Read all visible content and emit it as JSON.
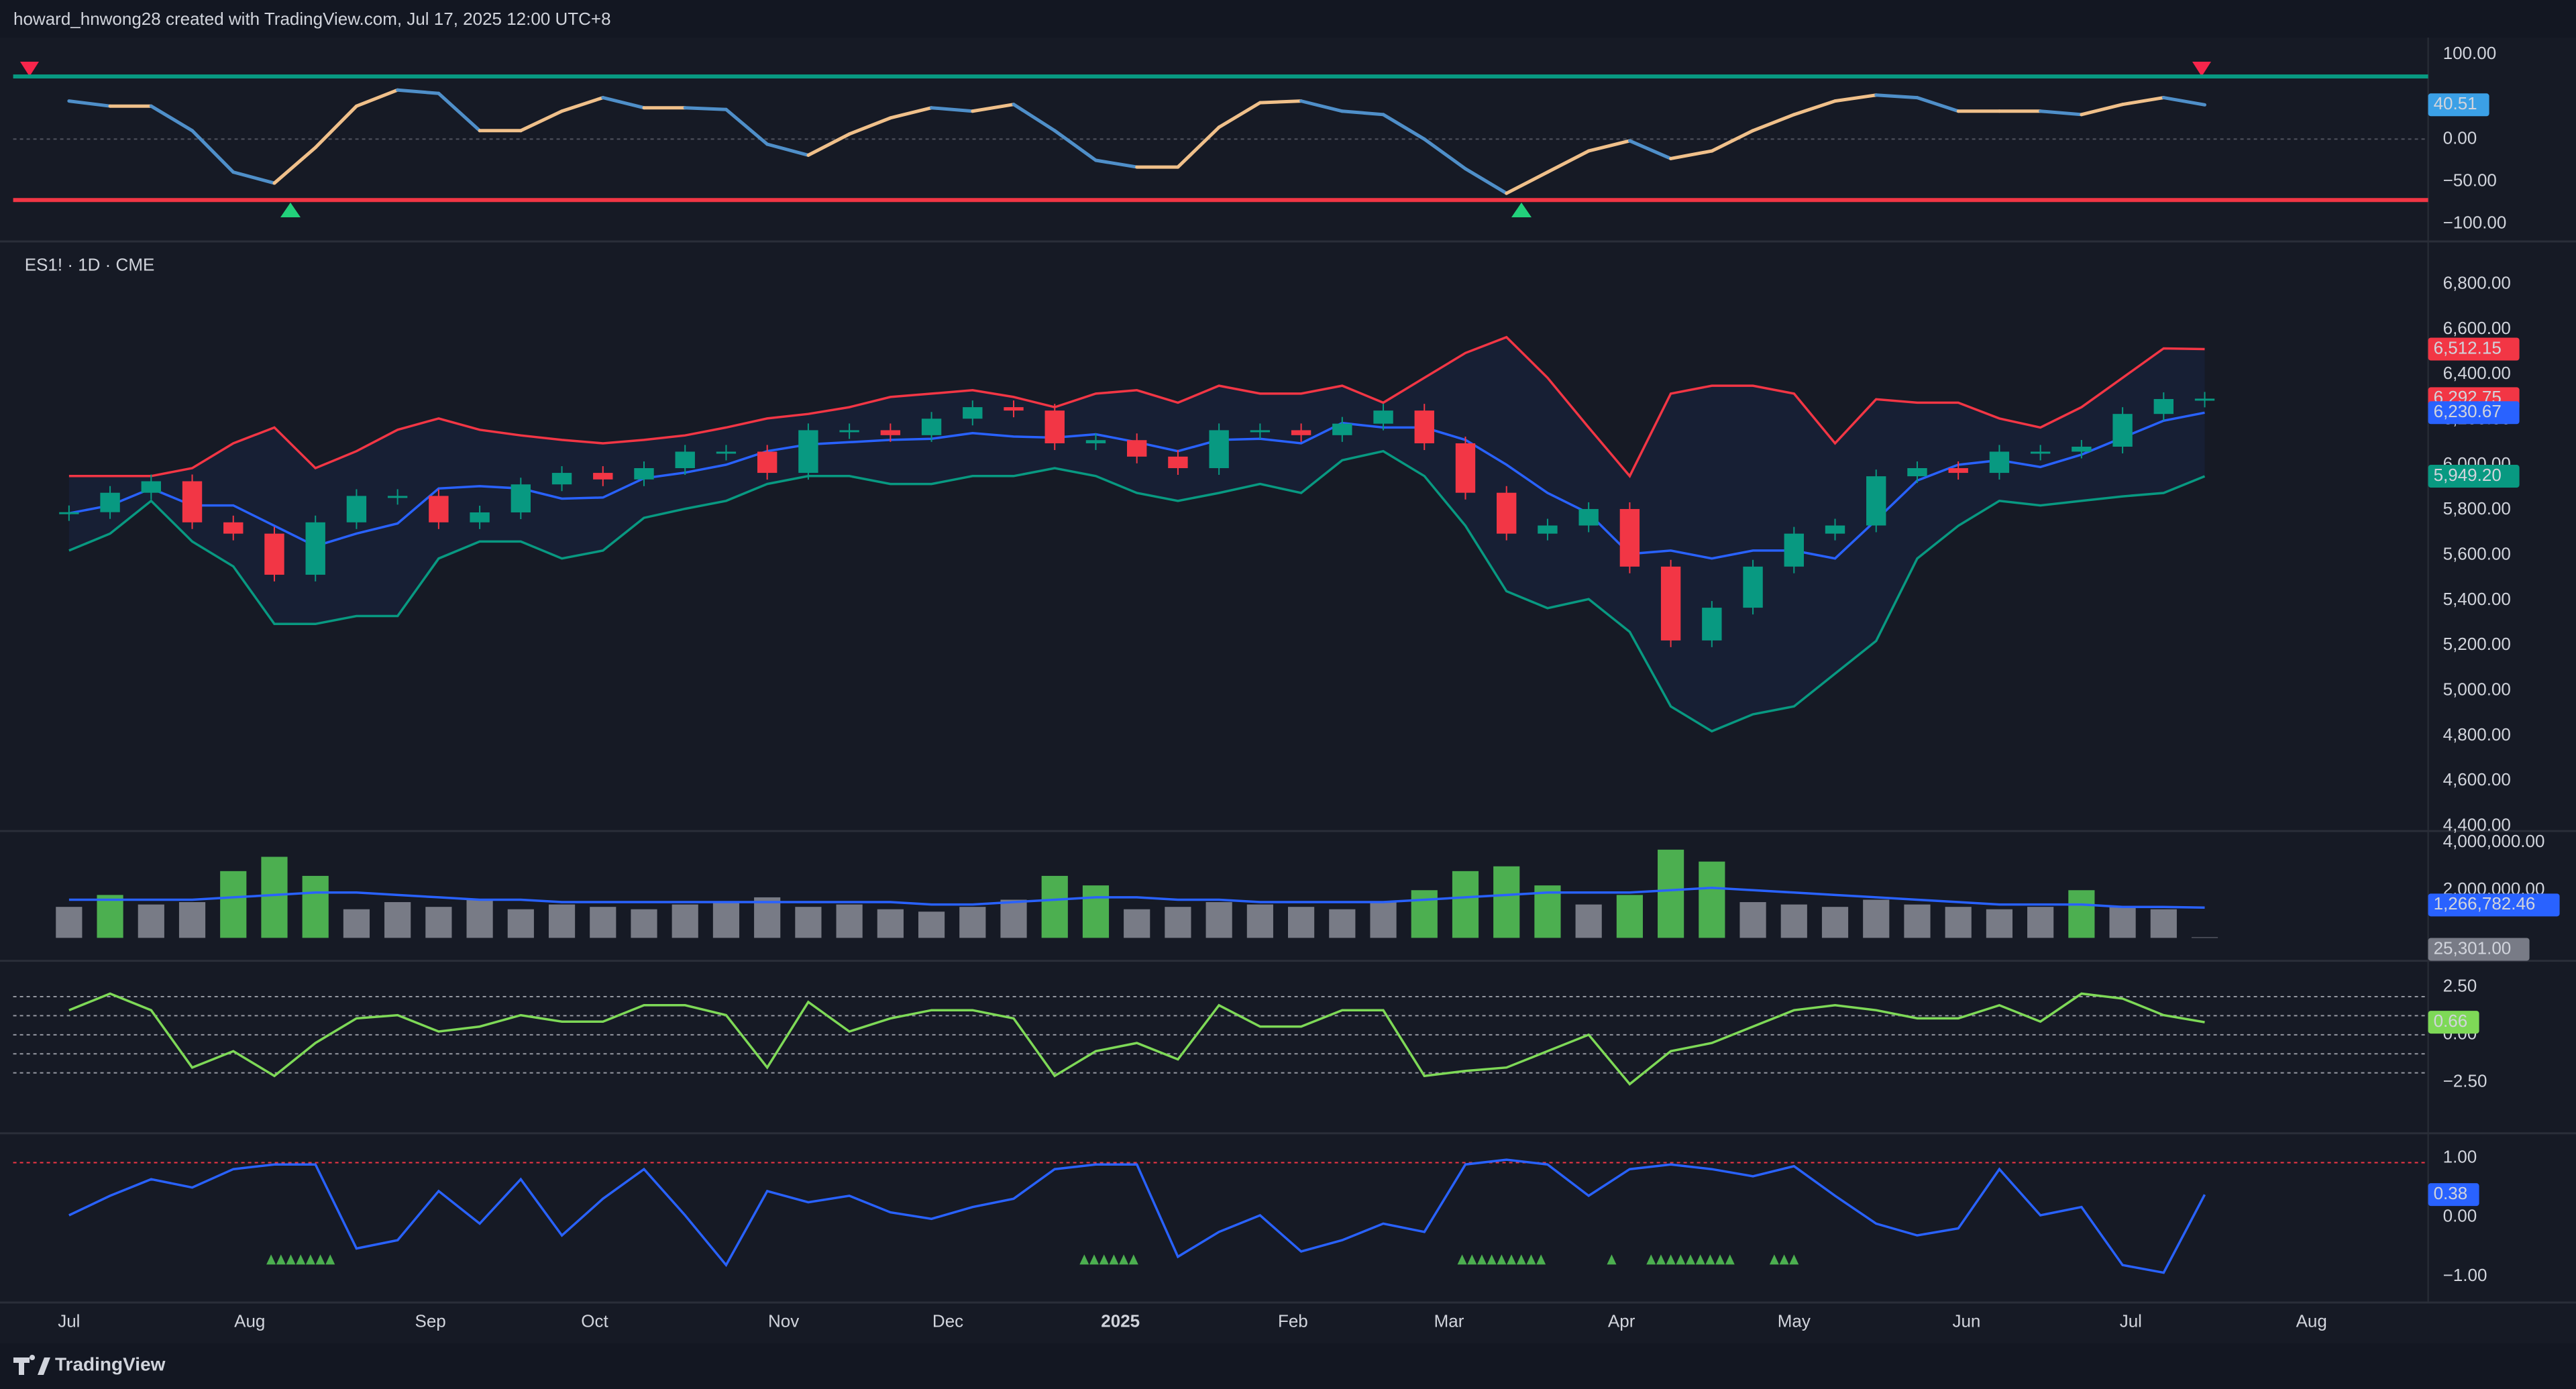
{
  "header": "howard_hnwong28 created with TradingView.com, Jul 17, 2025 12:00 UTC+8",
  "footer": "TradingView",
  "chart_data": {
    "type": "financial",
    "xlim": [
      -6.8,
      287.2
    ],
    "xticks": [
      {
        "value": 0,
        "label": "Jul"
      },
      {
        "value": 22,
        "label": "Aug"
      },
      {
        "value": 44,
        "label": "Sep"
      },
      {
        "value": 64,
        "label": "Oct"
      },
      {
        "value": 87,
        "label": "Nov"
      },
      {
        "value": 107,
        "label": "Dec"
      },
      {
        "value": 128,
        "label": "2025",
        "bold": true
      },
      {
        "value": 149,
        "label": "Feb"
      },
      {
        "value": 168,
        "label": "Mar"
      },
      {
        "value": 189,
        "label": "Apr"
      },
      {
        "value": 210,
        "label": "May"
      },
      {
        "value": 231,
        "label": "Jun"
      },
      {
        "value": 251,
        "label": "Jul"
      },
      {
        "value": 273,
        "label": "Aug"
      }
    ],
    "x": [
      0,
      5,
      10,
      15,
      20,
      25,
      30,
      35,
      40,
      45,
      50,
      55,
      60,
      65,
      70,
      75,
      80,
      85,
      90,
      95,
      100,
      105,
      110,
      115,
      120,
      125,
      130,
      135,
      140,
      145,
      150,
      155,
      160,
      165,
      170,
      175,
      180,
      185,
      190,
      195,
      200,
      205,
      210,
      215,
      220,
      225,
      230,
      235,
      240,
      245,
      250,
      255,
      260
    ],
    "panes": [
      {
        "type": "line",
        "ylim": [
          -117,
          110
        ],
        "yticks": [
          {
            "value": 100,
            "label": "100.00"
          },
          {
            "value": 0,
            "label": "0.00"
          },
          {
            "value": -50,
            "label": "−50.00"
          },
          {
            "value": -100,
            "label": "−100.00"
          }
        ],
        "levels": [
          {
            "value": 74,
            "color": "#089981"
          },
          {
            "value": 0,
            "color": "#50535e",
            "dash": true
          },
          {
            "value": -72,
            "color": "#f23645"
          }
        ],
        "series": [
          {
            "up_color": "#f0c08a",
            "color": "#4f8fc9",
            "label_color": "#3ba0e6",
            "values": [
              45,
              39,
              39,
              10,
              -39,
              -52,
              -10,
              39,
              58,
              54,
              10,
              10,
              33,
              49,
              37,
              37,
              35,
              -6,
              -19,
              6,
              25,
              37,
              33,
              41,
              10,
              -25,
              -33,
              -33,
              14,
              43,
              45,
              33,
              29,
              0,
              -35,
              -64,
              -39,
              -14,
              -2,
              -23,
              -14,
              10,
              29,
              45,
              52,
              49,
              33,
              33,
              33,
              29,
              41,
              49,
              40.51
            ]
          }
        ]
      },
      {
        "type": "candlestick",
        "legend": "ES1! · 1D · CME",
        "ylim": [
          4385,
          6967
        ],
        "yticks": [
          {
            "value": 4400,
            "label": "4,400.00"
          },
          {
            "value": 4600,
            "label": "4,600.00"
          },
          {
            "value": 4800,
            "label": "4,800.00"
          },
          {
            "value": 5000,
            "label": "5,000.00"
          },
          {
            "value": 5200,
            "label": "5,200.00"
          },
          {
            "value": 5400,
            "label": "5,400.00"
          },
          {
            "value": 5600,
            "label": "5,600.00"
          },
          {
            "value": 5800,
            "label": "5,800.00"
          },
          {
            "value": 6000,
            "label": "6,000.00"
          },
          {
            "value": 6200,
            "label": "6,200.00"
          },
          {
            "value": 6400,
            "label": "6,400.00"
          },
          {
            "value": 6600,
            "label": "6,600.00"
          },
          {
            "value": 6800,
            "label": "6,800.00"
          }
        ],
        "up_color": "#089981",
        "down_color": "#f23645",
        "band_fill": "rgba(41,98,255,0.07)",
        "close": {
          "label_color": "#f23645",
          "last_value_label": "6,292.75",
          "values": [
            5790,
            5876,
            5927,
            5745,
            5695,
            5513,
            5745,
            5862,
            5862,
            5745,
            5789,
            5913,
            5964,
            5935,
            5985,
            6058,
            6058,
            5964,
            6153,
            6153,
            6131,
            6204,
            6255,
            6240,
            6095,
            6109,
            6036,
            5985,
            6153,
            6153,
            6131,
            6182,
            6240,
            6095,
            5876,
            5695,
            5731,
            5804,
            5549,
            5222,
            5367,
            5549,
            5695,
            5731,
            5949,
            5985,
            5964,
            6058,
            6058,
            6080,
            6225,
            6291,
            6292.75
          ]
        },
        "series": [
          {
            "color": "#f23645",
            "last_value_label": "6,512.15",
            "values": [
              5950,
              5950,
              5950,
              5985,
              6095,
              6165,
              5985,
              6060,
              6155,
              6205,
              6155,
              6130,
              6110,
              6095,
              6110,
              6130,
              6165,
              6205,
              6225,
              6255,
              6300,
              6315,
              6330,
              6300,
              6255,
              6315,
              6330,
              6275,
              6350,
              6315,
              6315,
              6350,
              6275,
              6385,
              6495,
              6565,
              6385,
              6165,
              5950,
              6315,
              6350,
              6350,
              6315,
              6095,
              6290,
              6275,
              6275,
              6205,
              6165,
              6255,
              6385,
              6515,
              6512.15
            ]
          },
          {
            "color": "#2962ff",
            "last_value_label": "6,230.67",
            "values": [
              5785,
              5820,
              5895,
              5820,
              5820,
              5730,
              5640,
              5695,
              5740,
              5895,
              5905,
              5895,
              5850,
              5855,
              5940,
              5965,
              6000,
              6060,
              6090,
              6100,
              6110,
              6115,
              6140,
              6125,
              6120,
              6135,
              6100,
              6060,
              6110,
              6115,
              6095,
              6185,
              6165,
              6165,
              6110,
              6000,
              5875,
              5785,
              5605,
              5620,
              5585,
              5620,
              5620,
              5585,
              5755,
              5930,
              6000,
              6020,
              5990,
              6045,
              6120,
              6195,
              6230.67
            ]
          },
          {
            "color": "#089981",
            "last_value_label": "5,949.20",
            "values": [
              5620,
              5695,
              5840,
              5660,
              5550,
              5295,
              5295,
              5330,
              5330,
              5585,
              5660,
              5660,
              5585,
              5620,
              5765,
              5805,
              5840,
              5915,
              5950,
              5950,
              5915,
              5915,
              5950,
              5950,
              5985,
              5950,
              5875,
              5840,
              5875,
              5915,
              5875,
              6020,
              6060,
              5950,
              5730,
              5440,
              5365,
              5405,
              5260,
              4930,
              4820,
              4895,
              4930,
              5075,
              5220,
              5585,
              5730,
              5840,
              5820,
              5840,
              5860,
              5875,
              5949.2
            ]
          }
        ]
      },
      {
        "type": "bar",
        "ylim": [
          0,
          4340000
        ],
        "yticks": [
          {
            "value": 2000000,
            "label": "2,000,000.00"
          },
          {
            "value": 4000000,
            "label": "4,000,000.00"
          }
        ],
        "volume": {
          "label_color": "#787b86",
          "last_value_label": "25,301.00",
          "values": [
            1300000,
            1800000,
            1400000,
            1500000,
            2800000,
            3400000,
            2600000,
            1200000,
            1500000,
            1300000,
            1600000,
            1200000,
            1400000,
            1300000,
            1200000,
            1400000,
            1500000,
            1700000,
            1300000,
            1400000,
            1200000,
            1100000,
            1300000,
            1600000,
            2600000,
            2200000,
            1200000,
            1300000,
            1500000,
            1400000,
            1300000,
            1200000,
            1500000,
            2000000,
            2800000,
            3000000,
            2200000,
            1400000,
            1800000,
            3700000,
            3200000,
            1500000,
            1400000,
            1300000,
            1600000,
            1400000,
            1300000,
            1200000,
            1300000,
            2000000,
            1300000,
            1200000,
            25301
          ],
          "colors": [
            "#787b86",
            "#4caf50",
            "#787b86",
            "#787b86",
            "#4caf50",
            "#4caf50",
            "#4caf50",
            "#787b86",
            "#787b86",
            "#787b86",
            "#787b86",
            "#787b86",
            "#787b86",
            "#787b86",
            "#787b86",
            "#787b86",
            "#787b86",
            "#787b86",
            "#787b86",
            "#787b86",
            "#787b86",
            "#787b86",
            "#787b86",
            "#787b86",
            "#4caf50",
            "#4caf50",
            "#787b86",
            "#787b86",
            "#787b86",
            "#787b86",
            "#787b86",
            "#787b86",
            "#787b86",
            "#4caf50",
            "#4caf50",
            "#4caf50",
            "#4caf50",
            "#787b86",
            "#4caf50",
            "#4caf50",
            "#4caf50",
            "#787b86",
            "#787b86",
            "#787b86",
            "#787b86",
            "#787b86",
            "#787b86",
            "#787b86",
            "#787b86",
            "#4caf50",
            "#787b86",
            "#787b86",
            "#787b86"
          ]
        },
        "series": [
          {
            "color": "#2962ff",
            "last_value_label": "1,266,782.46",
            "values": [
              1600000,
              1600000,
              1600000,
              1600000,
              1700000,
              1800000,
              1900000,
              1900000,
              1800000,
              1700000,
              1600000,
              1600000,
              1500000,
              1500000,
              1500000,
              1500000,
              1500000,
              1500000,
              1500000,
              1500000,
              1500000,
              1400000,
              1400000,
              1500000,
              1600000,
              1700000,
              1700000,
              1600000,
              1600000,
              1500000,
              1500000,
              1500000,
              1500000,
              1600000,
              1700000,
              1800000,
              1900000,
              1900000,
              1900000,
              2000000,
              2100000,
              2000000,
              1900000,
              1800000,
              1700000,
              1600000,
              1500000,
              1400000,
              1400000,
              1400000,
              1300000,
              1300000,
              1266782.46
            ]
          }
        ]
      },
      {
        "type": "line",
        "ylim": [
          -5,
          3.62
        ],
        "yticks": [
          {
            "value": 2.5,
            "label": "2.50"
          },
          {
            "value": 0,
            "label": "0.00"
          },
          {
            "value": -2.5,
            "label": "−2.50"
          }
        ],
        "levels": [
          {
            "value": 2,
            "color": "#9598a1",
            "dash": true
          },
          {
            "value": 1,
            "color": "#9598a1",
            "dash": true
          },
          {
            "value": 0,
            "color": "#9598a1",
            "dash": true
          },
          {
            "value": -1,
            "color": "#9598a1",
            "dash": true
          },
          {
            "value": -2,
            "color": "#9598a1",
            "dash": true
          }
        ],
        "series": [
          {
            "color": "#7ed957",
            "label_color": "#7ed957",
            "values": [
              1.29,
              2.16,
              1.29,
              -1.72,
              -0.86,
              -2.16,
              -0.43,
              0.86,
              1.03,
              0.17,
              0.43,
              1.03,
              0.69,
              0.69,
              1.55,
              1.55,
              1.03,
              -1.72,
              1.72,
              0.17,
              0.86,
              1.29,
              1.29,
              0.86,
              -2.16,
              -0.86,
              -0.43,
              -1.29,
              1.55,
              0.43,
              0.43,
              1.29,
              1.29,
              -2.16,
              -1.9,
              -1.72,
              -0.86,
              0,
              -2.59,
              -0.86,
              -0.43,
              0.43,
              1.29,
              1.55,
              1.29,
              0.86,
              0.86,
              1.55,
              0.69,
              2.16,
              1.9,
              1.03,
              0.66
            ]
          }
        ]
      },
      {
        "type": "line",
        "ylim": [
          -1.36,
          1.36
        ],
        "yticks": [
          {
            "value": 1,
            "label": "1.00"
          },
          {
            "value": 0,
            "label": "0.00"
          },
          {
            "value": -1,
            "label": "−1.00"
          }
        ],
        "levels": [
          {
            "value": 0.92,
            "color": "#f23645",
            "dash": true
          }
        ],
        "series": [
          {
            "color": "#2962ff",
            "label_color": "#2962ff",
            "values": [
              0.03,
              0.36,
              0.64,
              0.5,
              0.81,
              0.89,
              0.89,
              -0.53,
              -0.39,
              0.44,
              -0.11,
              0.64,
              -0.31,
              0.31,
              0.81,
              0.03,
              -0.81,
              0.44,
              0.25,
              0.36,
              0.08,
              -0.03,
              0.17,
              0.31,
              0.81,
              0.89,
              0.89,
              -0.67,
              -0.25,
              0.03,
              -0.58,
              -0.39,
              -0.11,
              -0.25,
              0.89,
              0.97,
              0.89,
              0.36,
              0.81,
              0.89,
              0.81,
              0.69,
              0.86,
              0.36,
              -0.11,
              -0.31,
              -0.19,
              0.81,
              0.03,
              0.17,
              -0.81,
              -0.94,
              0.38
            ]
          }
        ]
      }
    ]
  }
}
